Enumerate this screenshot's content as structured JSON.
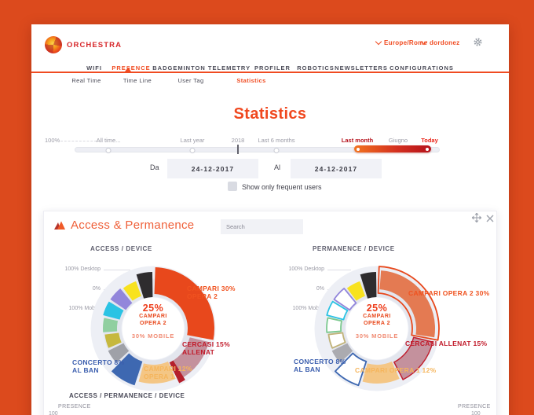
{
  "app": {
    "brand": "ORCHESTRA",
    "timezone": "Europe/Rome",
    "user": "dordonez"
  },
  "nav": {
    "items": [
      "WIFI",
      "PRESENCE",
      "BADGEMINTON",
      "TELEMETRY",
      "PROFILER",
      "ROBOTICS",
      "NEWSLETTERS",
      "CONFIGURATIONS"
    ],
    "active": "PRESENCE"
  },
  "subnav": {
    "items": [
      "Real Time",
      "Time Line",
      "User Tag",
      "Statistics"
    ],
    "active": "Statistics"
  },
  "page": {
    "title": "Statistics"
  },
  "slider": {
    "pct": "100%",
    "all_time": "All time...",
    "last_year": "Last year",
    "y2018": "2018",
    "last_6_months": "Last 6 months",
    "last_month": "Last month",
    "giugno": "Giugno",
    "today": "Today"
  },
  "filters": {
    "da_label": "Da",
    "da_value": "24-12-2017",
    "al_label": "Al",
    "al_value": "24-12-2017",
    "checkbox_label": "Show only frequent users",
    "checkbox_checked": false
  },
  "panel": {
    "title": "Access & Permanence",
    "search_placeholder": "Search"
  },
  "chart_data": [
    {
      "type": "donut",
      "title": "ACCESS / DEVICE",
      "axis_labels": [
        "100% Desktop",
        "0%",
        "100% Mobile"
      ],
      "center": {
        "pct": "25%",
        "line1": "CAMPARI",
        "line2": "OPERA 2",
        "sub": "30% MOBILE"
      },
      "segments": [
        {
          "label": "CAMPARI OPERA 2",
          "value": 30,
          "color": "#e8481c",
          "style": "solid"
        },
        {
          "label": "CERCASI ALLENAT",
          "value": 15,
          "color": "#c4919d",
          "style": "solid",
          "edge": "#b51f2b"
        },
        {
          "label": "CAMPARI OPERA 1",
          "value": 12,
          "color": "#f4c685",
          "style": "solid"
        },
        {
          "label": "CONCERTO AL BAN",
          "value": 8,
          "color": "#3e68b1",
          "style": "solid"
        },
        {
          "label": "",
          "value": 5,
          "color": "#9fa1a8",
          "style": "solid"
        },
        {
          "label": "",
          "value": 5,
          "color": "#c6b83e",
          "style": "solid"
        },
        {
          "label": "",
          "value": 5,
          "color": "#90cfa0",
          "style": "solid"
        },
        {
          "label": "",
          "value": 5,
          "color": "#2bc3e4",
          "style": "solid"
        },
        {
          "label": "",
          "value": 5,
          "color": "#9286db",
          "style": "solid"
        },
        {
          "label": "",
          "value": 5,
          "color": "#f8e21f",
          "style": "solid"
        },
        {
          "label": "",
          "value": 5,
          "color": "#2e2c2e",
          "style": "solid"
        }
      ],
      "callouts": [
        {
          "lines": [
            "CAMPARI 30%",
            "OPERA 2"
          ],
          "color": "#f0521f"
        },
        {
          "lines": [
            "CERCASI 15%",
            "ALLENAT"
          ],
          "color": "#c11a2a"
        },
        {
          "lines": [
            "CAMPARI 12%",
            "OPERA 1"
          ],
          "color": "#f5b55c"
        },
        {
          "lines": [
            "CONCERTO 8%",
            "AL BAN"
          ],
          "color": "#3b5eae"
        }
      ]
    },
    {
      "type": "donut",
      "title": "PERMANENCE / DEVICE",
      "axis_labels": [
        "100% Desktop",
        "0%",
        "100% Mobile"
      ],
      "center": {
        "pct": "25%",
        "line1": "CAMPARI",
        "line2": "OPERA 2",
        "sub": "30% MOBILE"
      },
      "segments": [
        {
          "label": "CAMPARI OPERA 2",
          "value": 30,
          "color": "#e8481c",
          "style": "double",
          "fill": "#e47a52"
        },
        {
          "label": "CERCASI ALLENAT",
          "value": 15,
          "color": "#c4919d",
          "style": "solid",
          "stroke": "#c02030"
        },
        {
          "label": "CAMPARI OPERA 1",
          "value": 12,
          "color": "#f4c685",
          "style": "solid"
        },
        {
          "label": "CONCERTO AL BAN",
          "value": 8,
          "color": "#3e68b1",
          "style": "outline"
        },
        {
          "label": "",
          "value": 5,
          "color": "#ababb0",
          "style": "solid"
        },
        {
          "label": "",
          "value": 5,
          "color": "#c0b277",
          "style": "outline"
        },
        {
          "label": "",
          "value": 5,
          "color": "#7cc98f",
          "style": "outline"
        },
        {
          "label": "",
          "value": 5,
          "color": "#2bc3e4",
          "style": "outline"
        },
        {
          "label": "",
          "value": 5,
          "color": "#9286db",
          "style": "outline"
        },
        {
          "label": "",
          "value": 5,
          "color": "#f8e21f",
          "style": "solid"
        },
        {
          "label": "",
          "value": 5,
          "color": "#2e2c2e",
          "style": "solid"
        }
      ],
      "callouts": [
        {
          "lines": [
            "CAMPARI OPERA 2 30%"
          ],
          "color": "#f0521f"
        },
        {
          "lines": [
            "CERCASI ALLENAT 15%"
          ],
          "color": "#c11a2a"
        },
        {
          "lines": [
            "CAMPARI OPERA 1 12%"
          ],
          "color": "#f5b55c"
        },
        {
          "lines": [
            "CONCERTO 8%",
            "AL BAN"
          ],
          "color": "#3b5eae"
        }
      ]
    }
  ],
  "bottom": {
    "section_title": "ACCESS / PERMANENCE / DEVICE",
    "presence_left": "PRESENCE",
    "presence_right": "PRESENCE",
    "tick_left": "100",
    "tick_right": "100"
  }
}
